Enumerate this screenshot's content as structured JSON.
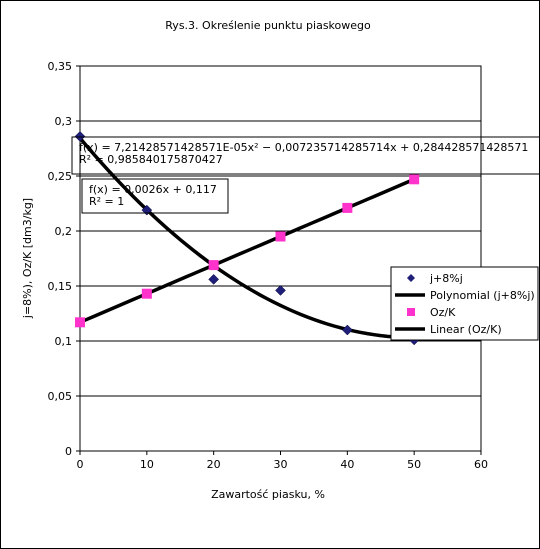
{
  "chart_data": {
    "type": "scatter",
    "title": "Rys.3.    Określenie punktu piaskowego",
    "xlabel": "Zawartość piasku, %",
    "ylabel": "j=8%), Oz/K  [dm3/kg]",
    "xlim": [
      0,
      60
    ],
    "ylim": [
      0,
      0.35
    ],
    "x_ticks": [
      "0",
      "10",
      "20",
      "30",
      "40",
      "50",
      "60"
    ],
    "y_ticks": [
      "0",
      "0,05",
      "0,1",
      "0,15",
      "0,2",
      "0,25",
      "0,3",
      "0,35"
    ],
    "grid": "horizontal",
    "legend_position": "right",
    "series": [
      {
        "name": "j+8%j",
        "marker": "diamond",
        "color": "#1f1f7a",
        "x": [
          0,
          10,
          20,
          30,
          40,
          50
        ],
        "y": [
          0.286,
          0.219,
          0.156,
          0.146,
          0.11,
          0.101
        ]
      },
      {
        "name": "Oz/K",
        "marker": "square",
        "color": "#ff33cc",
        "x": [
          0,
          10,
          20,
          30,
          40,
          50
        ],
        "y": [
          0.117,
          0.143,
          0.169,
          0.195,
          0.221,
          0.247
        ]
      }
    ],
    "trendlines": [
      {
        "name": "Polynomial (j+8%j)",
        "kind": "poly2",
        "coefficients": [
          7.21428571428571e-05,
          -0.00723571428571429,
          0.284428571428571
        ],
        "x_range": [
          0,
          50
        ],
        "color": "#000000"
      },
      {
        "name": "Linear (Oz/K)",
        "kind": "linear",
        "coefficients": [
          0.0026,
          0.117
        ],
        "x_range": [
          0,
          50
        ],
        "color": "#000000"
      }
    ],
    "annotations": [
      {
        "lines": [
          "f(x) = 7,21428571428571E-05x² − 0,007235714285714x + 0,284428571428571",
          "R² = 0,985840175870427"
        ]
      },
      {
        "lines": [
          "f(x) = 0,0026x + 0,117",
          "R² = 1"
        ]
      }
    ]
  }
}
